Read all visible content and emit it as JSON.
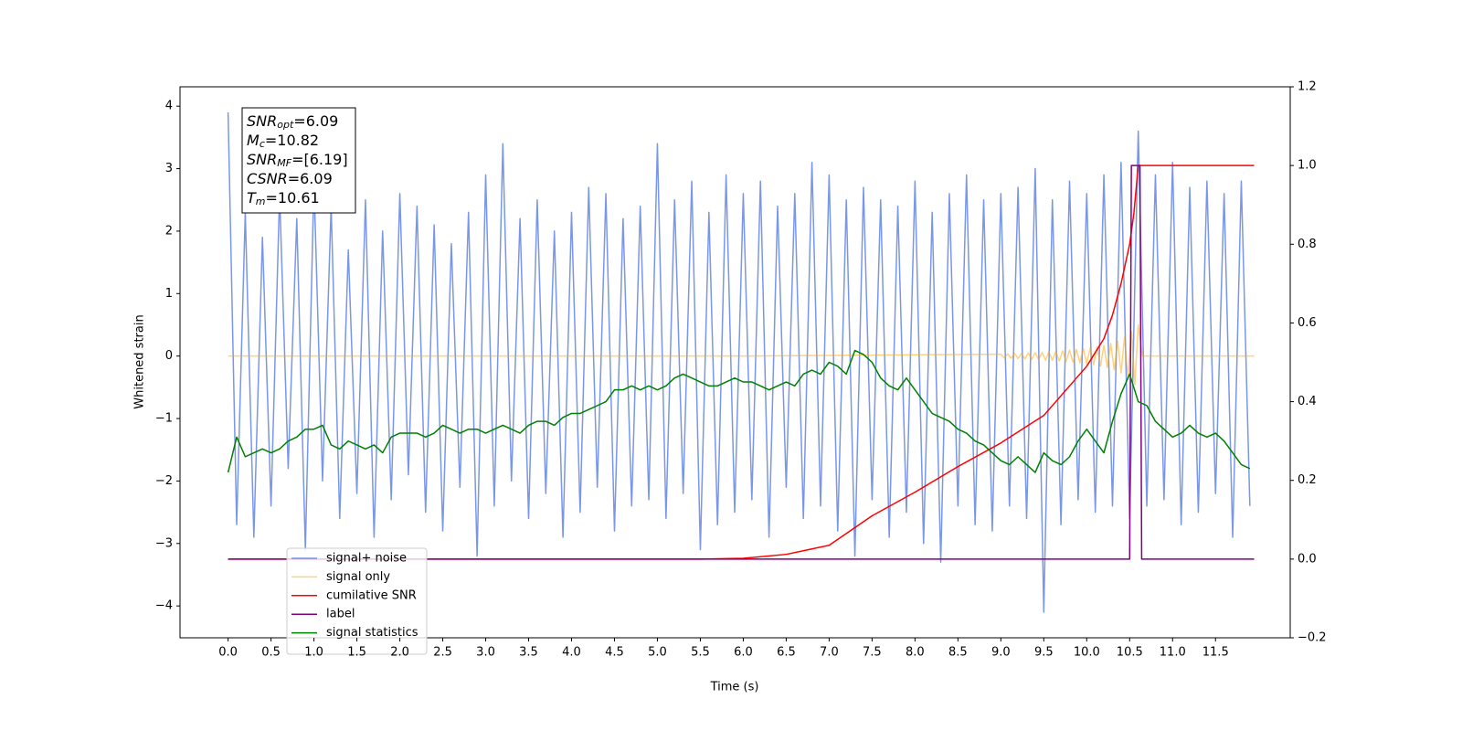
{
  "chart_data": {
    "type": "line",
    "xlabel": "Time (s)",
    "ylabel": "Whitened strain",
    "xlim": [
      -0.56,
      12.37
    ],
    "ylim": [
      -4.51,
      4.31
    ],
    "y2lim": [
      -0.2,
      1.2
    ],
    "xticks": [
      {
        "value": 0,
        "label": "0.0"
      },
      0.5,
      {
        "value": 1,
        "label": "1.0"
      },
      1.5,
      {
        "value": 2,
        "label": "2.0"
      },
      2.5,
      {
        "value": 3,
        "label": "3.0"
      },
      3.5,
      {
        "value": 4,
        "label": "4.0"
      },
      4.5,
      {
        "value": 5,
        "label": "5.0"
      },
      5.5,
      {
        "value": 6,
        "label": "6.0"
      },
      6.5,
      {
        "value": 7,
        "label": "7.0"
      },
      7.5,
      {
        "value": 8,
        "label": "8.0"
      },
      8.5,
      {
        "value": 9,
        "label": "9.0"
      },
      9.5,
      {
        "value": 10,
        "label": "10.0"
      },
      10.5,
      {
        "value": 11,
        "label": "11.0"
      },
      11.5
    ],
    "yticks": [
      {
        "value": -4,
        "label": "−4"
      },
      {
        "value": -3,
        "label": "−3"
      },
      {
        "value": -2,
        "label": "−2"
      },
      {
        "value": -1,
        "label": "−1"
      },
      0,
      1,
      2,
      3,
      4
    ],
    "y2ticks": [
      {
        "value": -0.2,
        "label": "−0.2"
      },
      {
        "value": 0,
        "label": "0.0"
      },
      0.2,
      0.4,
      0.6,
      0.8,
      {
        "value": 1,
        "label": "1.0"
      },
      1.2
    ],
    "legend": "lower left",
    "annotations": [
      {
        "name": "SNR",
        "sub": "opt",
        "text": "=6.09"
      },
      {
        "name": "M",
        "sub": "c",
        "text": "=10.82"
      },
      {
        "name": "SNR",
        "sub": "MF",
        "text": "=[6.19]"
      },
      {
        "name": "CSNR",
        "text": "=6.09"
      },
      {
        "name": "T",
        "sub": "m",
        "text": "=10.61"
      }
    ],
    "x": [
      0.0,
      0.1,
      0.2,
      0.3,
      0.4,
      0.5,
      0.6,
      0.7,
      0.8,
      0.9,
      1.0,
      1.1,
      1.2,
      1.3,
      1.4,
      1.5,
      1.6,
      1.7,
      1.8,
      1.9,
      2.0,
      2.1,
      2.2,
      2.3,
      2.4,
      2.5,
      2.6,
      2.7,
      2.8,
      2.9,
      3.0,
      3.1,
      3.2,
      3.3,
      3.4,
      3.5,
      3.6,
      3.7,
      3.8,
      3.9,
      4.0,
      4.1,
      4.2,
      4.3,
      4.4,
      4.5,
      4.6,
      4.7,
      4.8,
      4.9,
      5.0,
      5.1,
      5.2,
      5.3,
      5.4,
      5.5,
      5.6,
      5.7,
      5.8,
      5.9,
      6.0,
      6.1,
      6.2,
      6.3,
      6.4,
      6.5,
      6.6,
      6.7,
      6.8,
      6.9,
      7.0,
      7.1,
      7.2,
      7.3,
      7.4,
      7.5,
      7.6,
      7.7,
      7.8,
      7.9,
      8.0,
      8.1,
      8.2,
      8.3,
      8.4,
      8.5,
      8.6,
      8.7,
      8.8,
      8.9,
      9.0,
      9.1,
      9.2,
      9.3,
      9.4,
      9.5,
      9.6,
      9.7,
      9.8,
      9.9,
      10.0,
      10.1,
      10.2,
      10.3,
      10.4,
      10.5,
      10.6,
      10.7,
      10.8,
      10.9,
      11.0,
      11.1,
      11.2,
      11.3,
      11.4,
      11.5,
      11.6,
      11.7,
      11.8,
      11.9
    ],
    "series": [
      {
        "name": "signal+ noise",
        "color": "#4169e1",
        "alpha": 0.7,
        "values": [
          3.9,
          -2.7,
          2.3,
          -2.9,
          1.9,
          -2.4,
          2.6,
          -1.8,
          2.2,
          -3.1,
          2.8,
          -2.0,
          2.4,
          -2.6,
          1.7,
          -2.2,
          2.5,
          -2.9,
          2.0,
          -2.3,
          2.6,
          -1.9,
          2.4,
          -2.5,
          2.1,
          -2.8,
          1.8,
          -2.1,
          2.3,
          -3.2,
          2.9,
          -2.4,
          3.4,
          -2.0,
          2.2,
          -2.6,
          2.5,
          -2.2,
          2.0,
          -2.9,
          2.3,
          -2.5,
          2.7,
          -2.1,
          2.6,
          -2.8,
          2.2,
          -2.4,
          2.4,
          -2.3,
          3.4,
          -2.6,
          2.5,
          -2.2,
          2.8,
          -3.1,
          2.3,
          -2.7,
          2.9,
          -2.5,
          2.6,
          -2.3,
          2.8,
          -2.9,
          2.4,
          -2.1,
          2.6,
          -2.6,
          3.1,
          -2.4,
          2.9,
          -2.8,
          2.5,
          -3.2,
          2.7,
          -2.3,
          2.5,
          -2.9,
          2.4,
          -2.5,
          2.8,
          -3.0,
          2.3,
          -3.3,
          2.6,
          -2.4,
          2.9,
          -2.7,
          2.5,
          -2.8,
          2.6,
          -2.4,
          2.7,
          -2.6,
          3.0,
          -4.1,
          2.5,
          -2.7,
          2.8,
          -2.3,
          2.6,
          -2.5,
          2.9,
          -2.4,
          3.1,
          -2.6,
          3.6,
          -2.4,
          2.9,
          -2.3,
          3.1,
          -2.7,
          2.7,
          -2.5,
          2.8,
          -2.2,
          2.6,
          -2.9,
          2.8,
          -2.4
        ]
      },
      {
        "name": "signal only",
        "color": "#ffa500",
        "alpha": 0.5,
        "x": [
          0,
          6.0,
          9.0,
          9.04,
          9.08,
          9.12,
          9.16,
          9.2,
          9.24,
          9.28,
          9.32,
          9.36,
          9.4,
          9.44,
          9.48,
          9.52,
          9.56,
          9.6,
          9.64,
          9.68,
          9.72,
          9.76,
          9.8,
          9.84,
          9.88,
          9.92,
          9.96,
          10.0,
          10.04,
          10.08,
          10.12,
          10.16,
          10.2,
          10.24,
          10.28,
          10.32,
          10.36,
          10.4,
          10.44,
          10.48,
          10.52,
          10.56,
          10.6,
          10.65,
          11.95
        ],
        "values": [
          0,
          0,
          0.03,
          -0.03,
          0.035,
          -0.035,
          0.04,
          -0.04,
          0.045,
          -0.045,
          0.05,
          -0.05,
          0.055,
          -0.06,
          0.06,
          -0.065,
          0.07,
          -0.07,
          0.075,
          -0.08,
          0.085,
          -0.09,
          0.095,
          -0.1,
          0.105,
          -0.11,
          0.12,
          -0.125,
          0.13,
          -0.14,
          0.15,
          -0.16,
          0.17,
          -0.18,
          0.2,
          -0.22,
          0.24,
          -0.27,
          0.3,
          -0.34,
          0.4,
          -0.46,
          0.5,
          0,
          0
        ]
      },
      {
        "name": "cumilative SNR",
        "color": "#ff0000",
        "axis": "y2",
        "x": [
          0,
          5.5,
          6.0,
          6.5,
          7.0,
          7.5,
          8.0,
          8.5,
          9.0,
          9.5,
          10.0,
          10.2,
          10.3,
          10.4,
          10.5,
          10.55,
          10.6,
          11.95
        ],
        "values": [
          0,
          0,
          0.002,
          0.012,
          0.035,
          0.11,
          0.17,
          0.235,
          0.295,
          0.365,
          0.49,
          0.56,
          0.62,
          0.7,
          0.8,
          0.88,
          1.0,
          1.0
        ]
      },
      {
        "name": "label",
        "color": "#800080",
        "axis": "y2",
        "x": [
          0,
          10.5,
          10.52,
          10.62,
          10.64,
          11.95
        ],
        "values": [
          0,
          0,
          1,
          1,
          0,
          0
        ]
      },
      {
        "name": "signal statistics",
        "color": "#008000",
        "axis": "y2",
        "values": [
          0.22,
          0.31,
          0.26,
          0.27,
          0.28,
          0.27,
          0.28,
          0.3,
          0.31,
          0.33,
          0.33,
          0.34,
          0.29,
          0.28,
          0.3,
          0.29,
          0.28,
          0.29,
          0.27,
          0.31,
          0.32,
          0.32,
          0.32,
          0.31,
          0.32,
          0.34,
          0.33,
          0.32,
          0.33,
          0.33,
          0.32,
          0.33,
          0.34,
          0.33,
          0.32,
          0.34,
          0.35,
          0.35,
          0.34,
          0.36,
          0.37,
          0.37,
          0.38,
          0.39,
          0.4,
          0.43,
          0.43,
          0.44,
          0.43,
          0.44,
          0.43,
          0.44,
          0.46,
          0.47,
          0.46,
          0.45,
          0.44,
          0.44,
          0.45,
          0.46,
          0.45,
          0.45,
          0.44,
          0.43,
          0.44,
          0.45,
          0.44,
          0.47,
          0.48,
          0.47,
          0.5,
          0.49,
          0.47,
          0.53,
          0.52,
          0.5,
          0.46,
          0.44,
          0.43,
          0.46,
          0.43,
          0.4,
          0.37,
          0.36,
          0.35,
          0.33,
          0.32,
          0.3,
          0.29,
          0.27,
          0.25,
          0.24,
          0.26,
          0.24,
          0.22,
          0.27,
          0.25,
          0.24,
          0.26,
          0.3,
          0.33,
          0.3,
          0.27,
          0.35,
          0.42,
          0.47,
          0.4,
          0.39,
          0.35,
          0.33,
          0.31,
          0.32,
          0.34,
          0.32,
          0.31,
          0.32,
          0.3,
          0.27,
          0.24,
          0.23
        ]
      }
    ]
  }
}
